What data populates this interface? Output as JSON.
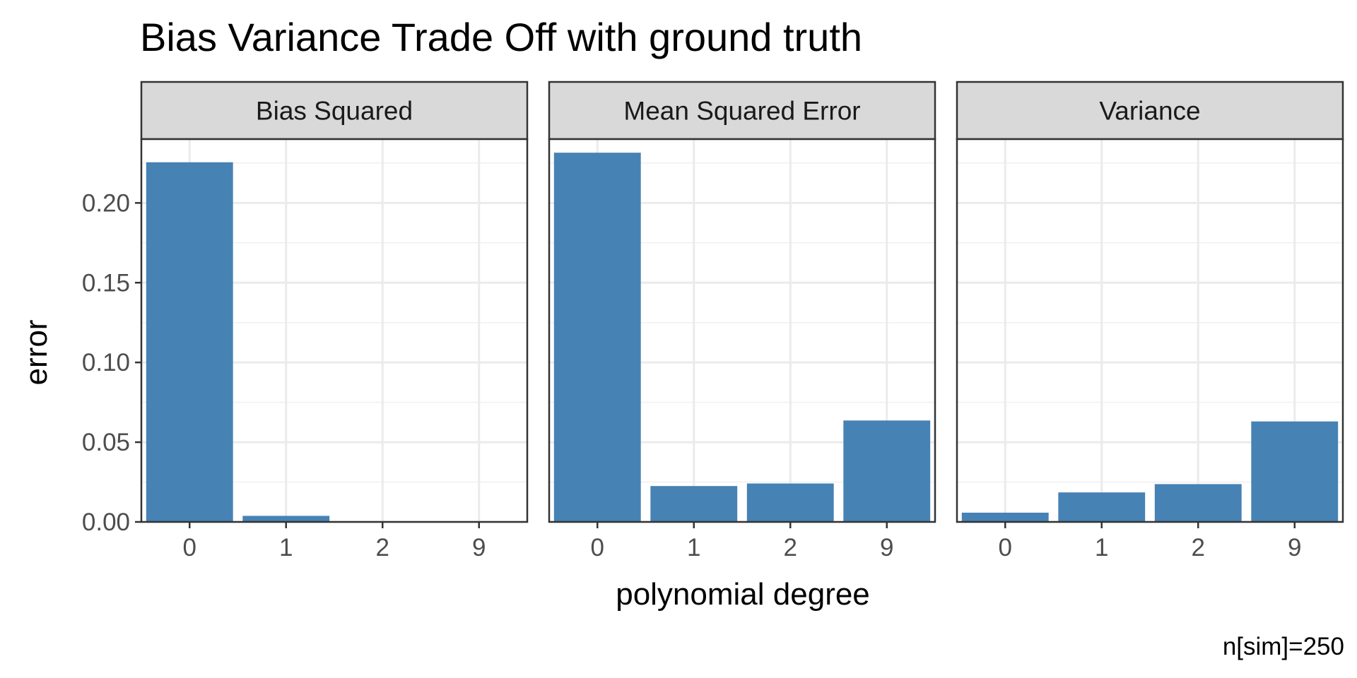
{
  "chart_data": {
    "type": "bar",
    "title": "Bias Variance Trade Off with ground truth",
    "xlabel": "polynomial degree",
    "ylabel": "error",
    "caption": "n[sim]=250",
    "categories": [
      "0",
      "1",
      "2",
      "9"
    ],
    "ylim": [
      0,
      0.24
    ],
    "yticks": [
      "0.00",
      "0.05",
      "0.10",
      "0.15",
      "0.20"
    ],
    "grid": true,
    "bar_color": "#4682B4",
    "facets": [
      {
        "name": "Bias Squared",
        "values": [
          0.2255,
          0.0038,
          0.0002,
          0.0002
        ]
      },
      {
        "name": "Mean Squared Error",
        "values": [
          0.2315,
          0.0225,
          0.0241,
          0.0636
        ]
      },
      {
        "name": "Variance",
        "values": [
          0.0058,
          0.0185,
          0.0237,
          0.063
        ]
      }
    ]
  }
}
